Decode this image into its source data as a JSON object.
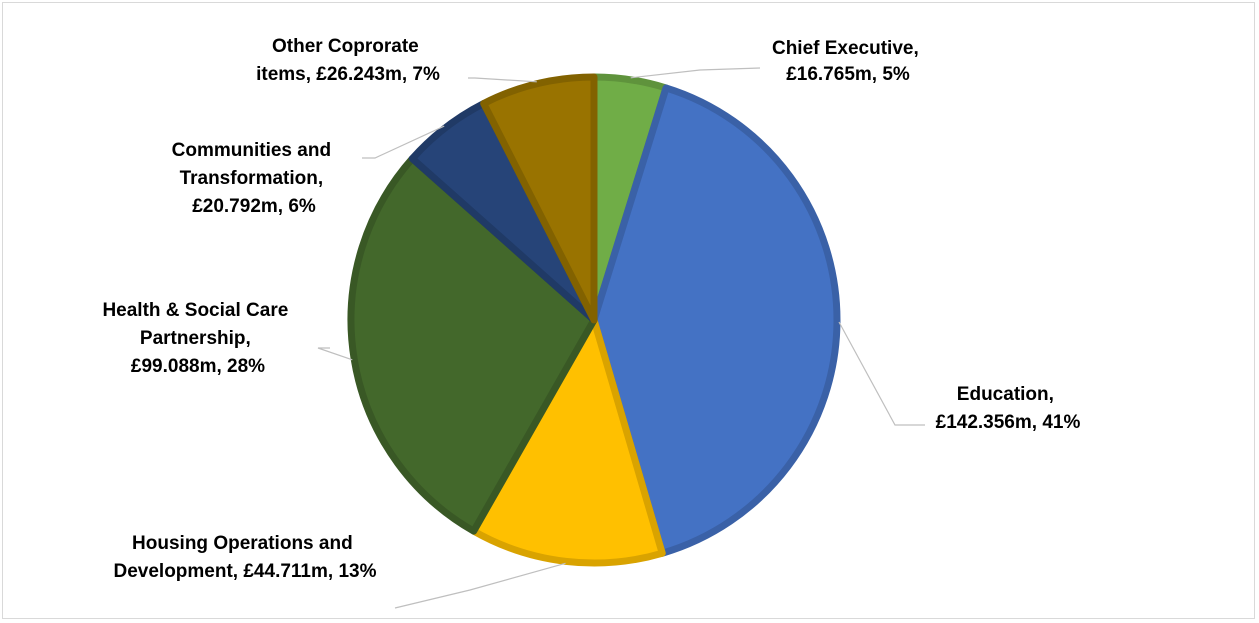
{
  "chart_data": {
    "type": "pie",
    "title": "",
    "unit": "£m",
    "slices": [
      {
        "label": "Chief Executive",
        "value": 16.765,
        "display_value": "£16.765m",
        "percent": "5%",
        "color": "#70ad47"
      },
      {
        "label": "Education",
        "value": 142.356,
        "display_value": "£142.356m",
        "percent": "41%",
        "color": "#4472c4"
      },
      {
        "label": "Housing Operations and Development",
        "value": 44.711,
        "display_value": "£44.711m",
        "percent": "13%",
        "color": "#ffc000"
      },
      {
        "label": "Health & Social Care Partnership",
        "value": 99.088,
        "display_value": "£99.088m",
        "percent": "28%",
        "color": "#43682b"
      },
      {
        "label": "Communities and Transformation",
        "value": 20.792,
        "display_value": "£20.792m",
        "percent": "6%",
        "color": "#264478"
      },
      {
        "label": "Other Coprorate items",
        "value": 26.243,
        "display_value": "£26.243m",
        "percent": "7%",
        "color": "#997300"
      }
    ],
    "data_labels": [
      {
        "lines": [
          "Chief Executive,",
          "£16.765m, 5%"
        ]
      },
      {
        "lines": [
          "Education,",
          "£142.356m, 41%"
        ]
      },
      {
        "lines": [
          "Housing Operations and",
          "Development, £44.711m, 13%"
        ]
      },
      {
        "lines": [
          "Health & Social Care",
          "Partnership,",
          "£99.088m, 28%"
        ]
      },
      {
        "lines": [
          "Communities and",
          "Transformation,",
          "£20.792m, 6%"
        ]
      },
      {
        "lines": [
          "Other Coprorate",
          "items, £26.243m, 7%"
        ]
      }
    ],
    "start_angle_deg": 0,
    "direction": "clockwise",
    "legend": "none"
  }
}
